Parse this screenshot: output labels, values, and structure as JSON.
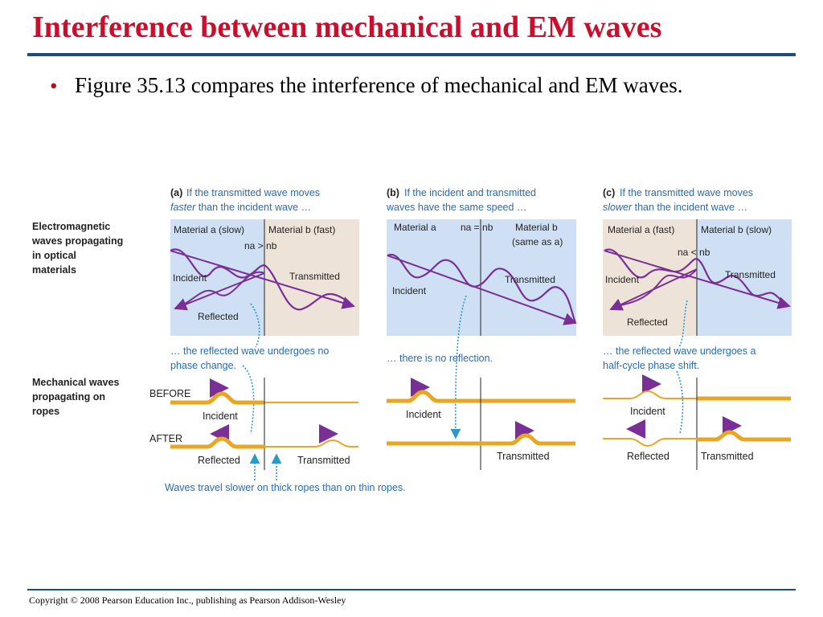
{
  "slide": {
    "title": "Interference between mechanical and EM waves",
    "bullet": "Figure 35.13 compares the interference of mechanical and EM waves.",
    "copyright": "Copyright © 2008 Pearson Education Inc., publishing as Pearson Addison-Wesley"
  },
  "figure": {
    "row_labels": {
      "em": [
        "Electromagnetic",
        "waves propagating",
        "in optical",
        "materials"
      ],
      "mech": [
        "Mechanical waves",
        "propagating on",
        "ropes"
      ]
    },
    "panel_a": {
      "tag": "(a)",
      "caption1": "If the transmitted wave moves",
      "caption2_em": "faster",
      "caption2_rest": " than the incident wave …",
      "material_left": "Material a (slow)",
      "material_right": "Material b (fast)",
      "relation": "na > nb",
      "incident": "Incident",
      "transmitted": "Transmitted",
      "reflected": "Reflected",
      "note1": "… the reflected wave undergoes no",
      "note2": "phase change.",
      "before": "BEFORE",
      "after": "AFTER",
      "rope_incident": "Incident",
      "rope_reflected": "Reflected",
      "rope_transmitted": "Transmitted"
    },
    "panel_b": {
      "tag": "(b)",
      "caption1": "If the incident and transmitted",
      "caption2": "waves have the same speed …",
      "material_left": "Material a",
      "relation": "na = nb",
      "material_right": "Material b",
      "material_right2": "(same as a)",
      "incident": "Incident",
      "transmitted": "Transmitted",
      "note1": "… there is no reflection.",
      "rope_incident": "Incident",
      "rope_transmitted": "Transmitted"
    },
    "panel_c": {
      "tag": "(c)",
      "caption1": "If the transmitted wave moves",
      "caption2_em": "slower",
      "caption2_rest": " than the incident wave …",
      "material_left": "Material a (fast)",
      "material_right": "Material b (slow)",
      "relation": "na < nb",
      "incident": "Incident",
      "transmitted": "Transmitted",
      "reflected": "Reflected",
      "note1": "… the reflected wave undergoes a",
      "note2": "half-cycle phase shift.",
      "rope_incident": "Incident",
      "rope_reflected": "Reflected",
      "rope_transmitted": "Transmitted"
    },
    "bottom_note": "Waves travel slower on thick ropes than on thin ropes.",
    "colors": {
      "wave": "#7a2f96",
      "blue_bg": "#cfe0f4",
      "tan_bg": "#ede3d8",
      "rope": "#e9a623",
      "caption": "#2a6bb0"
    }
  }
}
